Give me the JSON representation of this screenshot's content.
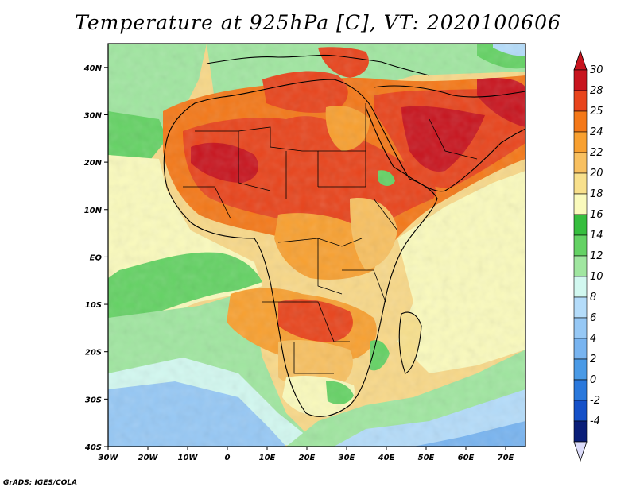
{
  "title": "Temperature at 925hPa [C], VT: 2020100606",
  "credit": "GrADS: IGES/COLA",
  "map": {
    "lon_range": [
      -30,
      75
    ],
    "lat_range": [
      -40,
      45
    ],
    "lon_ticks": [
      {
        "value": -30,
        "label": "30W"
      },
      {
        "value": -20,
        "label": "20W"
      },
      {
        "value": -10,
        "label": "10W"
      },
      {
        "value": 0,
        "label": "0"
      },
      {
        "value": 10,
        "label": "10E"
      },
      {
        "value": 20,
        "label": "20E"
      },
      {
        "value": 30,
        "label": "30E"
      },
      {
        "value": 40,
        "label": "40E"
      },
      {
        "value": 50,
        "label": "50E"
      },
      {
        "value": 60,
        "label": "60E"
      },
      {
        "value": 70,
        "label": "70E"
      }
    ],
    "lat_ticks": [
      {
        "value": 40,
        "label": "40N"
      },
      {
        "value": 30,
        "label": "30N"
      },
      {
        "value": 20,
        "label": "20N"
      },
      {
        "value": 10,
        "label": "10N"
      },
      {
        "value": 0,
        "label": "EQ"
      },
      {
        "value": -10,
        "label": "10S"
      },
      {
        "value": -20,
        "label": "20S"
      },
      {
        "value": -30,
        "label": "30S"
      },
      {
        "value": -40,
        "label": "40S"
      }
    ]
  },
  "colorbar": {
    "labels": [
      "30",
      "28",
      "25",
      "24",
      "22",
      "20",
      "18",
      "16",
      "14",
      "12",
      "10",
      "8",
      "6",
      "4",
      "2",
      "0",
      "-2",
      "-4"
    ],
    "colors": [
      "#c8141e",
      "#e8441c",
      "#f47818",
      "#f8a030",
      "#f8c060",
      "#f8e08c",
      "#fafabc",
      "#36be3e",
      "#64d264",
      "#a0e6a0",
      "#d2f8f0",
      "#b4dcfa",
      "#96c8f5",
      "#78b4f0",
      "#4a9ae6",
      "#2a78dc",
      "#1450c8",
      "#0a1e78"
    ],
    "top_cap": "#c8141e",
    "bottom_cap": "#dcdcfa"
  }
}
